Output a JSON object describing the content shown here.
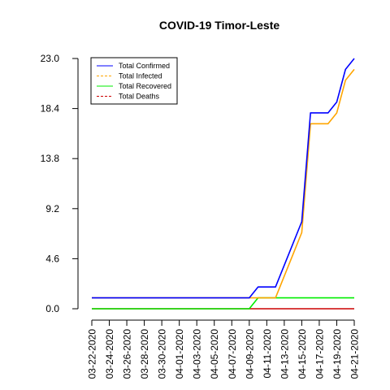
{
  "chart_data": {
    "type": "line",
    "title": "COVID-19 Timor-Leste",
    "xlabel": "",
    "ylabel": "",
    "x": [
      "03-22-2020",
      "03-23-2020",
      "03-24-2020",
      "03-25-2020",
      "03-26-2020",
      "03-27-2020",
      "03-28-2020",
      "03-29-2020",
      "03-30-2020",
      "03-31-2020",
      "04-01-2020",
      "04-02-2020",
      "04-03-2020",
      "04-04-2020",
      "04-05-2020",
      "04-06-2020",
      "04-07-2020",
      "04-08-2020",
      "04-09-2020",
      "04-10-2020",
      "04-11-2020",
      "04-12-2020",
      "04-13-2020",
      "04-14-2020",
      "04-15-2020",
      "04-16-2020",
      "04-17-2020",
      "04-18-2020",
      "04-19-2020",
      "04-20-2020",
      "04-21-2020"
    ],
    "x_tick_labels": [
      "03-22-2020",
      "03-24-2020",
      "03-26-2020",
      "03-28-2020",
      "03-30-2020",
      "04-01-2020",
      "04-03-2020",
      "04-05-2020",
      "04-07-2020",
      "04-09-2020",
      "04-11-2020",
      "04-13-2020",
      "04-15-2020",
      "04-17-2020",
      "04-19-2020",
      "04-21-2020"
    ],
    "y_ticks": [
      "0.0",
      "4.6",
      "9.2",
      "13.8",
      "18.4",
      "23.0"
    ],
    "ylim": [
      0,
      23
    ],
    "grid": false,
    "legend_position": "top-left",
    "series": [
      {
        "name": "Total Confirmed",
        "color": "#0000ff",
        "dash": "solid",
        "values": [
          1,
          1,
          1,
          1,
          1,
          1,
          1,
          1,
          1,
          1,
          1,
          1,
          1,
          1,
          1,
          1,
          1,
          1,
          1,
          2,
          2,
          2,
          4,
          6,
          8,
          18,
          18,
          18,
          19,
          22,
          23
        ]
      },
      {
        "name": "Total Infected",
        "color": "#ffa500",
        "dash": "dashed",
        "values": [
          1,
          1,
          1,
          1,
          1,
          1,
          1,
          1,
          1,
          1,
          1,
          1,
          1,
          1,
          1,
          1,
          1,
          1,
          1,
          1,
          1,
          1,
          3,
          5,
          7,
          17,
          17,
          17,
          18,
          21,
          22
        ]
      },
      {
        "name": "Total Recovered",
        "color": "#00ee00",
        "dash": "solid",
        "values": [
          0,
          0,
          0,
          0,
          0,
          0,
          0,
          0,
          0,
          0,
          0,
          0,
          0,
          0,
          0,
          0,
          0,
          0,
          0,
          1,
          1,
          1,
          1,
          1,
          1,
          1,
          1,
          1,
          1,
          1,
          1
        ]
      },
      {
        "name": "Total Deaths",
        "color": "#cc0000",
        "dash": "dashed",
        "values": [
          0,
          0,
          0,
          0,
          0,
          0,
          0,
          0,
          0,
          0,
          0,
          0,
          0,
          0,
          0,
          0,
          0,
          0,
          0,
          0,
          0,
          0,
          0,
          0,
          0,
          0,
          0,
          0,
          0,
          0,
          0
        ]
      }
    ]
  }
}
